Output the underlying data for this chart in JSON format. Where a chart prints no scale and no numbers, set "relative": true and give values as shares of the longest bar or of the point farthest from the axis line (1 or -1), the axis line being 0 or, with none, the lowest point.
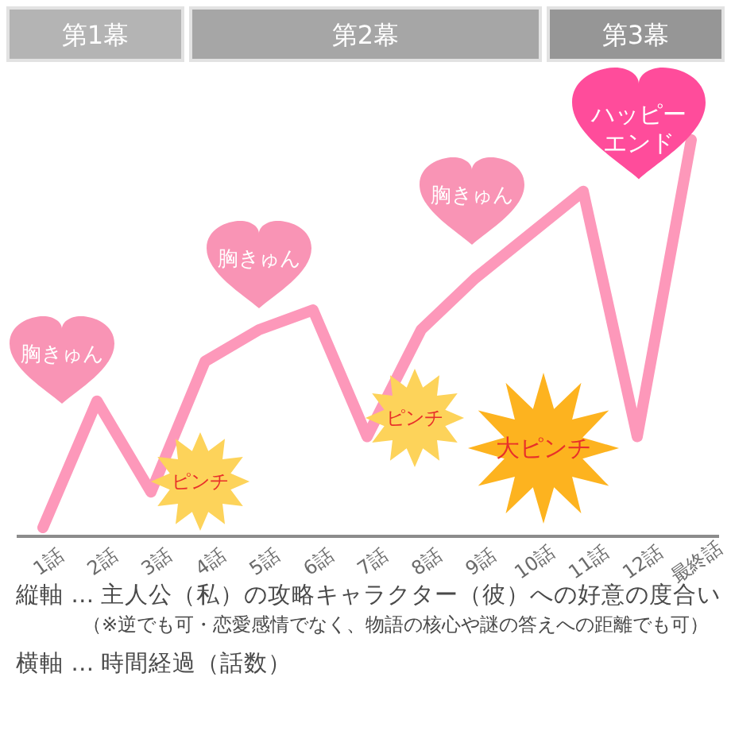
{
  "chart_data": {
    "type": "line",
    "relative": true,
    "categories": [
      "1話",
      "2話",
      "3話",
      "4話",
      "5話",
      "6話",
      "7話",
      "8話",
      "9話",
      "10話",
      "11話",
      "12話",
      "最終話"
    ],
    "values": [
      0.02,
      0.34,
      0.11,
      0.44,
      0.52,
      0.57,
      0.25,
      0.52,
      0.65,
      0.76,
      0.87,
      0.25,
      1.0
    ],
    "color": "#fd98ba",
    "annotations": [
      "第1幕",
      "第2幕",
      "第3幕",
      "胸きゅん",
      "ピンチ",
      "胸きゅん",
      "ピンチ",
      "胸きゅん",
      "大ピンチ",
      "ハッピーエンド",
      "縦軸 … 主人公（私）の攻略キャラクター（彼）への好意の度合い",
      "（※逆でも可・恋愛感情でなく、物語の核心や謎の答えへの距離でも可）",
      "横軸 … 時間経過（話数）"
    ]
  }
}
